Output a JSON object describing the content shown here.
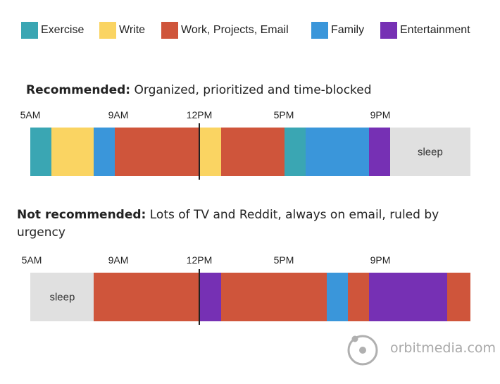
{
  "colors": {
    "exercise": "#3aa6b3",
    "write": "#fad462",
    "work": "#cf553b",
    "family": "#3a96da",
    "entertainment": "#7630b4",
    "sleep": "#e0e0e0",
    "logo": "#b0b0b0"
  },
  "legend": [
    {
      "key": "exercise",
      "label": "Exercise"
    },
    {
      "key": "write",
      "label": "Write"
    },
    {
      "key": "work",
      "label": "Work, Projects, Email"
    },
    {
      "key": "family",
      "label": "Family"
    },
    {
      "key": "entertainment",
      "label": "Entertainment"
    }
  ],
  "recommended": {
    "heading_bold": "Recommended:",
    "heading_text": " Organized, prioritized and time-blocked",
    "ticks": [
      "5AM",
      "9AM",
      "12PM",
      "5PM",
      "9PM"
    ],
    "segments": [
      {
        "category": "exercise",
        "hours": 1,
        "label": ""
      },
      {
        "category": "write",
        "hours": 2,
        "label": ""
      },
      {
        "category": "family",
        "hours": 1,
        "label": ""
      },
      {
        "category": "work",
        "hours": 4,
        "label": ""
      },
      {
        "category": "write",
        "hours": 1,
        "label": ""
      },
      {
        "category": "work",
        "hours": 3,
        "label": ""
      },
      {
        "category": "exercise",
        "hours": 1,
        "label": ""
      },
      {
        "category": "family",
        "hours": 3,
        "label": ""
      },
      {
        "category": "entertainment",
        "hours": 1,
        "label": ""
      },
      {
        "category": "sleep",
        "hours": 3.75,
        "label": "sleep"
      }
    ]
  },
  "not_recommended": {
    "heading_bold": "Not recommended:",
    "heading_text": " Lots of TV and Reddit, always on email, ruled by urgency",
    "ticks": [
      "5AM",
      "9AM",
      "12PM",
      "5PM",
      "9PM"
    ],
    "segments": [
      {
        "category": "sleep",
        "hours": 3,
        "label": "sleep"
      },
      {
        "category": "work",
        "hours": 5,
        "label": ""
      },
      {
        "category": "entertainment",
        "hours": 1,
        "label": ""
      },
      {
        "category": "work",
        "hours": 5,
        "label": ""
      },
      {
        "category": "family",
        "hours": 1,
        "label": ""
      },
      {
        "category": "work",
        "hours": 1,
        "label": ""
      },
      {
        "category": "entertainment",
        "hours": 3.67,
        "label": ""
      },
      {
        "category": "work",
        "hours": 1.08,
        "label": ""
      }
    ]
  },
  "logo": {
    "text": "orbitmedia.com"
  }
}
